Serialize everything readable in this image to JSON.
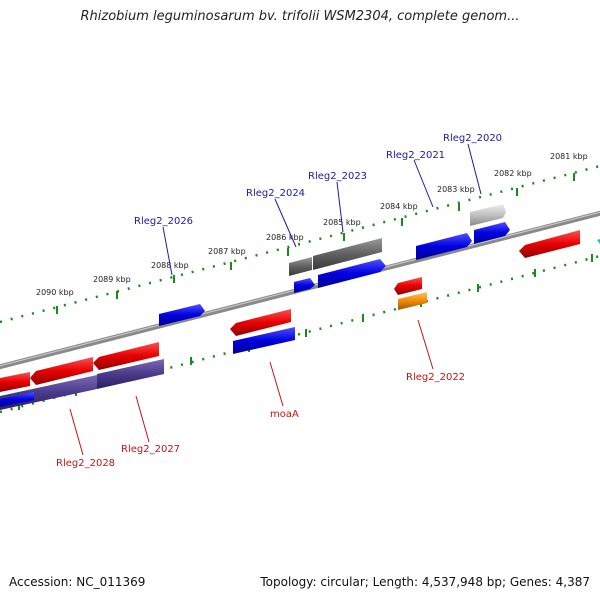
{
  "title": "Rhizobium leguminosarum bv. trifolii WSM2304, complete genom...",
  "footer": {
    "accession": "Accession: NC_011369",
    "topology": "Topology: circular; Length: 4,537,948 bp; Genes: 4,387"
  },
  "ticks": [
    {
      "label": "2081 kbp"
    },
    {
      "label": "2082 kbp"
    },
    {
      "label": "2083 kbp"
    },
    {
      "label": "2084 kbp"
    },
    {
      "label": "2085 kbp"
    },
    {
      "label": "2086 kbp"
    },
    {
      "label": "2087 kbp"
    },
    {
      "label": "2088 kbp"
    },
    {
      "label": "2089 kbp"
    },
    {
      "label": "2090 kbp"
    }
  ],
  "gene_labels": [
    {
      "name": "Rleg2_2020",
      "strand": "forward"
    },
    {
      "name": "Rleg2_2021",
      "strand": "forward"
    },
    {
      "name": "Rleg2_2023",
      "strand": "forward"
    },
    {
      "name": "Rleg2_2024",
      "strand": "forward"
    },
    {
      "name": "Rleg2_2026",
      "strand": "forward"
    },
    {
      "name": "Rleg2_2022",
      "strand": "reverse"
    },
    {
      "name": "moaA",
      "strand": "reverse"
    },
    {
      "name": "Rleg2_2027",
      "strand": "reverse"
    },
    {
      "name": "Rleg2_2028",
      "strand": "reverse"
    }
  ],
  "colors": {
    "forward_gene": "#0000e0",
    "reverse_gene": "#e60000",
    "pseudo_gene": "#606060",
    "light_gene": "#c0c0c0",
    "orange_gene": "#f08a00",
    "purple_gene": "#4a3a8a",
    "backbone": "#909090",
    "tick": "#1a8a1a"
  }
}
